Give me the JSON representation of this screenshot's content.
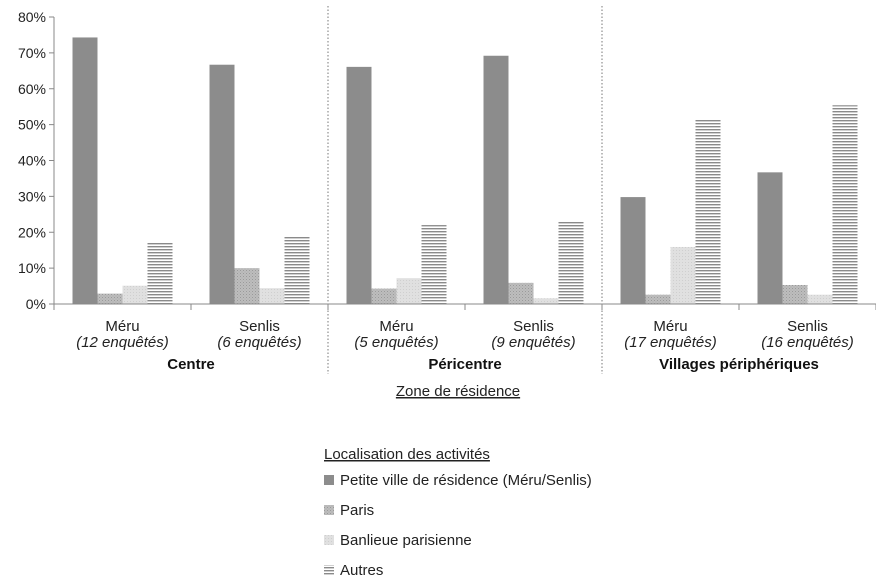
{
  "chart_data": {
    "type": "bar",
    "ylim": [
      0,
      80
    ],
    "yticks": [
      "0%",
      "10%",
      "20%",
      "30%",
      "40%",
      "50%",
      "60%",
      "70%",
      "80%"
    ],
    "xlabel": "Zone de résidence",
    "categories": [
      {
        "name": "Méru",
        "sub": "(12 enquêtés)"
      },
      {
        "name": "Senlis",
        "sub": "(6 enquêtés)"
      },
      {
        "name": "Méru",
        "sub": "(5 enquêtés)"
      },
      {
        "name": "Senlis",
        "sub": "(9 enquêtés)"
      },
      {
        "name": "Méru",
        "sub": "(17 enquêtés)"
      },
      {
        "name": "Senlis",
        "sub": "(16 enquêtés)"
      }
    ],
    "groups": [
      "Centre",
      "Péricentre",
      "Villages périphériques"
    ],
    "legend_title": "Localisation des activités",
    "legend_position": "bottom",
    "series": [
      {
        "name": "Petite ville de résidence (Méru/Senlis)",
        "color": "#8c8c8c",
        "pattern": "solid",
        "values": [
          74.3,
          66.7,
          66.1,
          69.2,
          29.8,
          36.7
        ]
      },
      {
        "name": "Paris",
        "color": "#b5b5b5",
        "pattern": "dots",
        "values": [
          2.9,
          10.0,
          4.3,
          5.9,
          2.6,
          5.3
        ]
      },
      {
        "name": "Banlieue parisienne",
        "color": "#dcdcdc",
        "pattern": "light",
        "values": [
          5.1,
          4.4,
          7.2,
          1.6,
          15.9,
          2.6
        ]
      },
      {
        "name": "Autres",
        "color": "#a0a0a0",
        "pattern": "hlines",
        "values": [
          17.1,
          18.9,
          22.0,
          23.0,
          51.4,
          55.4
        ]
      }
    ]
  }
}
